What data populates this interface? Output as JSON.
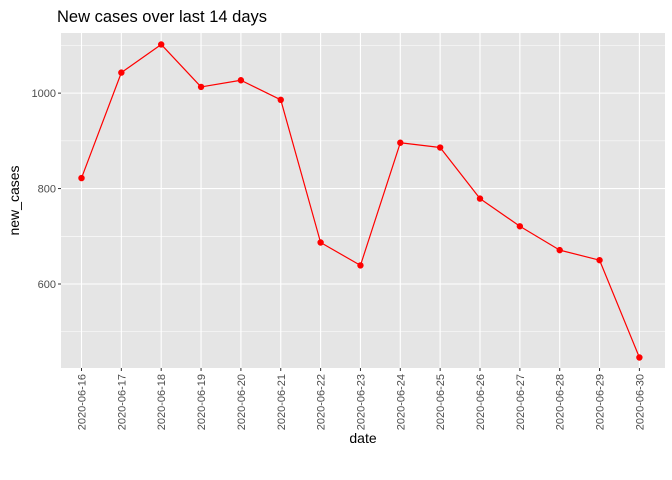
{
  "chart_data": {
    "type": "line",
    "title": "New cases over last 14 days",
    "xlabel": "date",
    "ylabel": "new_cases",
    "x": [
      "2020-06-16",
      "2020-06-17",
      "2020-06-18",
      "2020-06-19",
      "2020-06-20",
      "2020-06-21",
      "2020-06-22",
      "2020-06-23",
      "2020-06-24",
      "2020-06-25",
      "2020-06-26",
      "2020-06-27",
      "2020-06-28",
      "2020-06-29",
      "2020-06-30"
    ],
    "series": [
      {
        "name": "new_cases",
        "values": [
          822,
          1043,
          1102,
          1013,
          1027,
          986,
          687,
          639,
          896,
          886,
          779,
          721,
          671,
          650,
          446
        ]
      }
    ],
    "ylim": [
      424,
      1126
    ],
    "yticks": [
      600,
      800,
      1000
    ],
    "yticks_minor": [
      500,
      700,
      900,
      1100
    ],
    "grid": true,
    "colors": {
      "panel": "#e5e5e5",
      "grid": "#ffffff",
      "series": "#ff0000",
      "tick_text": "#4d4d4d",
      "tick_mark": "#333333"
    }
  }
}
